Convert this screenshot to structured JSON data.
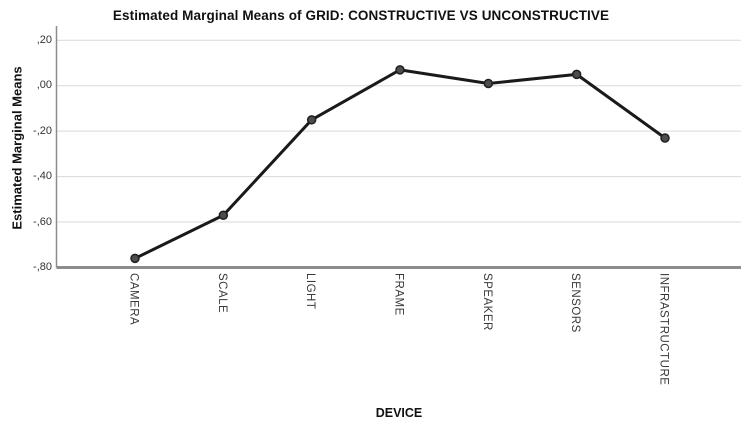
{
  "chart_data": {
    "type": "line",
    "title": "Estimated Marginal Means of GRID: CONSTRUCTIVE VS UNCONSTRUCTIVE",
    "xlabel": "DEVICE",
    "ylabel": "Estimated Marginal Means",
    "categories": [
      "CAMERA",
      "SCALE",
      "LIGHT",
      "FRAME",
      "SPEAKER",
      "SENSORS",
      "INFRASTRUCTURE"
    ],
    "series": [
      {
        "name": "Estimated Marginal Means of GRID",
        "values": [
          -0.76,
          -0.57,
          -0.15,
          0.07,
          0.01,
          0.05,
          -0.23
        ]
      }
    ],
    "ylim": [
      -0.8,
      0.2
    ],
    "yticks": [
      0.2,
      0.0,
      -0.2,
      -0.4,
      -0.6,
      -0.8
    ],
    "ytick_labels": [
      ",20",
      ",00",
      "-,20",
      "-,40",
      "-,60",
      "-,80"
    ],
    "grid": true,
    "legend_position": "none",
    "colors": {
      "line": "#1a1a1a",
      "marker_fill": "#4d4d4d",
      "marker_stroke": "#1f1f1f",
      "gridline": "#d9d9d9",
      "axis": "#8c8c8c",
      "background": "#ffffff"
    }
  }
}
